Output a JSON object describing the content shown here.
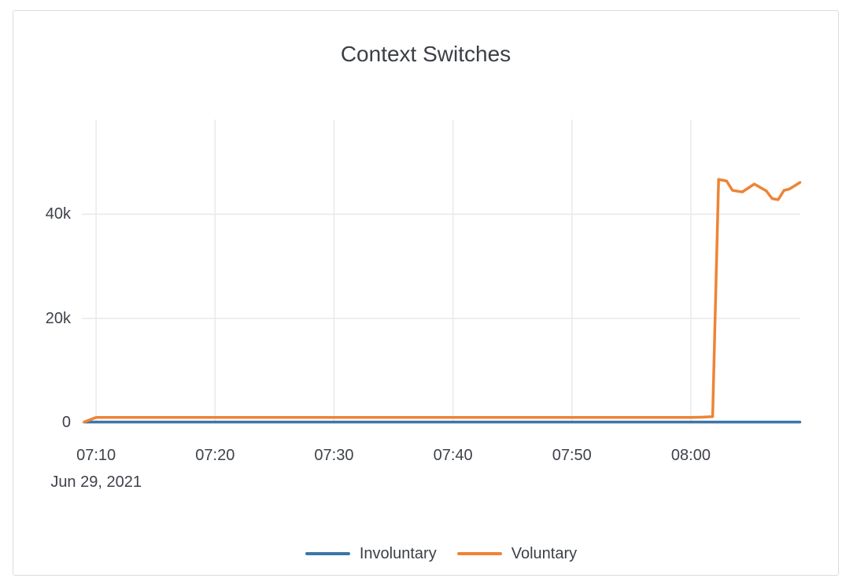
{
  "chart_data": {
    "type": "line",
    "title": "Context Switches",
    "x_axis": {
      "tick_labels": [
        "07:10",
        "07:20",
        "07:30",
        "07:40",
        "07:50",
        "08:00"
      ],
      "date_label": "Jun 29, 2021",
      "range": [
        "07:08:48",
        "08:09:12"
      ],
      "grid": true
    },
    "y_axis": {
      "ticks": [
        {
          "label": "0",
          "value": 0
        },
        {
          "label": "20k",
          "value": 20000
        },
        {
          "label": "40k",
          "value": 40000
        }
      ],
      "range": [
        0,
        58200
      ],
      "grid": true
    },
    "series": [
      {
        "name": "Involuntary",
        "color": "#3a76ab",
        "points": [
          [
            "07:09",
            60
          ],
          [
            "07:20",
            60
          ],
          [
            "07:30",
            60
          ],
          [
            "07:40",
            60
          ],
          [
            "07:50",
            60
          ],
          [
            "08:00",
            60
          ],
          [
            "08:09:10",
            60
          ]
        ]
      },
      {
        "name": "Voluntary",
        "color": "#ee8435",
        "points": [
          [
            "07:09",
            80
          ],
          [
            "07:10",
            950
          ],
          [
            "07:20",
            950
          ],
          [
            "07:30",
            950
          ],
          [
            "07:40",
            950
          ],
          [
            "07:50",
            950
          ],
          [
            "08:00",
            950
          ],
          [
            "08:01",
            1000
          ],
          [
            "08:01:50",
            1100
          ],
          [
            "08:02:20",
            46700
          ],
          [
            "08:03:00",
            46400
          ],
          [
            "08:03:30",
            44600
          ],
          [
            "08:04:00",
            44400
          ],
          [
            "08:04:20",
            44300
          ],
          [
            "08:05:20",
            45800
          ],
          [
            "08:06:20",
            44500
          ],
          [
            "08:06:50",
            43000
          ],
          [
            "08:07:20",
            42800
          ],
          [
            "08:07:50",
            44600
          ],
          [
            "08:08:15",
            44800
          ],
          [
            "08:08:45",
            45500
          ],
          [
            "08:09:10",
            46100
          ]
        ]
      }
    ],
    "legend": {
      "position": "bottom-center",
      "entries": [
        "Involuntary",
        "Voluntary"
      ]
    },
    "style": {
      "grid_color": "#e9e9eb",
      "text_color": "#3e424a",
      "title_color": "#3b3f46",
      "background": "#ffffff",
      "card_border_color": "#dcdcdc",
      "line_width": 3.5
    }
  }
}
